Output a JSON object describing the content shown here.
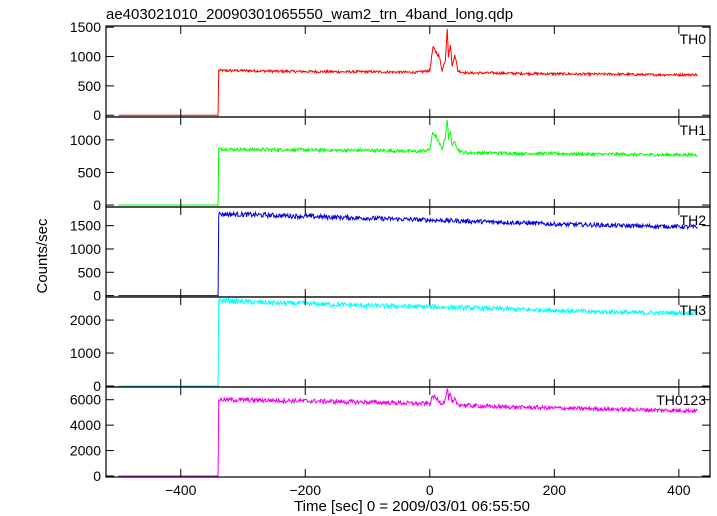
{
  "figure": {
    "title": "ae403021010_20090301065550_wam2_trn_4band_long.qdp",
    "xlabel": "Time [sec] 0 = 2009/03/01 06:55:50",
    "ylabel": "Counts/sec"
  },
  "chart_data": {
    "type": "line",
    "title": "ae403021010_20090301065550_wam2_trn_4band_long.qdp",
    "xlabel": "Time [sec] 0 = 2009/03/01 06:55:50",
    "ylabel": "Counts/sec",
    "xlim": [
      -520,
      450
    ],
    "xticks": [
      -400,
      -200,
      0,
      200,
      400
    ],
    "xtick_labels": [
      "−400",
      "−200",
      "0",
      "200",
      "400"
    ],
    "grid": false,
    "panels": [
      {
        "name": "TH0",
        "color": "#ff0000",
        "ylim": [
          -30,
          1520
        ],
        "yticks": [
          0,
          500,
          1000,
          1500
        ],
        "ytick_labels": [
          "0",
          "500",
          "1000",
          "1500"
        ],
        "x": [
          -500,
          -340,
          -339,
          -300,
          -250,
          -200,
          -150,
          -100,
          -50,
          -20,
          0,
          5,
          10,
          15,
          20,
          25,
          28,
          30,
          33,
          36,
          40,
          45,
          50,
          60,
          80,
          100,
          150,
          200,
          250,
          300,
          350,
          400,
          430
        ],
        "y": [
          0,
          0,
          760,
          760,
          750,
          745,
          740,
          740,
          735,
          730,
          760,
          1150,
          1080,
          1000,
          760,
          950,
          1500,
          1000,
          1200,
          820,
          1050,
          760,
          740,
          720,
          720,
          720,
          710,
          705,
          700,
          700,
          690,
          690,
          690
        ]
      },
      {
        "name": "TH1",
        "color": "#00ff00",
        "ylim": [
          -30,
          1350
        ],
        "yticks": [
          0,
          500,
          1000
        ],
        "ytick_labels": [
          "0",
          "500",
          "1000"
        ],
        "x": [
          -500,
          -340,
          -339,
          -300,
          -250,
          -200,
          -150,
          -100,
          -50,
          -20,
          0,
          5,
          10,
          15,
          20,
          25,
          28,
          30,
          33,
          36,
          40,
          45,
          50,
          60,
          80,
          100,
          150,
          200,
          250,
          300,
          350,
          400,
          430
        ],
        "y": [
          0,
          0,
          860,
          850,
          850,
          845,
          840,
          840,
          830,
          820,
          850,
          1120,
          1050,
          950,
          860,
          1050,
          1320,
          1000,
          1150,
          880,
          1000,
          850,
          820,
          800,
          800,
          800,
          790,
          790,
          780,
          780,
          770,
          770,
          770
        ]
      },
      {
        "name": "TH2",
        "color": "#0000dd",
        "ylim": [
          -30,
          1900
        ],
        "yticks": [
          0,
          500,
          1000,
          1500
        ],
        "ytick_labels": [
          "0",
          "500",
          "1000",
          "1500"
        ],
        "x": [
          -500,
          -340,
          -339,
          -300,
          -250,
          -200,
          -150,
          -100,
          -50,
          0,
          50,
          100,
          150,
          200,
          250,
          300,
          350,
          400,
          430
        ],
        "y": [
          0,
          0,
          1750,
          1740,
          1720,
          1700,
          1680,
          1660,
          1640,
          1620,
          1600,
          1580,
          1560,
          1530,
          1520,
          1500,
          1490,
          1480,
          1470
        ]
      },
      {
        "name": "TH3",
        "color": "#00ffff",
        "ylim": [
          -30,
          2700
        ],
        "yticks": [
          0,
          1000,
          2000
        ],
        "ytick_labels": [
          "0",
          "1000",
          "2000"
        ],
        "x": [
          -500,
          -340,
          -339,
          -300,
          -250,
          -200,
          -150,
          -100,
          -50,
          0,
          50,
          100,
          150,
          200,
          250,
          300,
          350,
          400,
          430
        ],
        "y": [
          0,
          0,
          2600,
          2560,
          2520,
          2500,
          2470,
          2440,
          2420,
          2400,
          2380,
          2350,
          2320,
          2300,
          2260,
          2240,
          2220,
          2220,
          2220
        ]
      },
      {
        "name": "TH0123",
        "color": "#ee00ee",
        "ylim": [
          -80,
          7000
        ],
        "yticks": [
          0,
          2000,
          4000,
          6000
        ],
        "ytick_labels": [
          "0",
          "2000",
          "4000",
          "6000"
        ],
        "x": [
          -500,
          -340,
          -339,
          -300,
          -250,
          -200,
          -150,
          -100,
          -50,
          -20,
          0,
          5,
          10,
          15,
          20,
          25,
          28,
          30,
          33,
          36,
          40,
          45,
          50,
          60,
          80,
          100,
          150,
          200,
          250,
          300,
          350,
          400,
          430
        ],
        "y": [
          0,
          0,
          6000,
          5980,
          5950,
          5900,
          5850,
          5800,
          5750,
          5700,
          5700,
          6300,
          6100,
          5900,
          5700,
          6000,
          6900,
          6100,
          6400,
          5700,
          6000,
          5650,
          5600,
          5550,
          5500,
          5450,
          5400,
          5350,
          5300,
          5250,
          5200,
          5150,
          5150
        ]
      }
    ]
  }
}
